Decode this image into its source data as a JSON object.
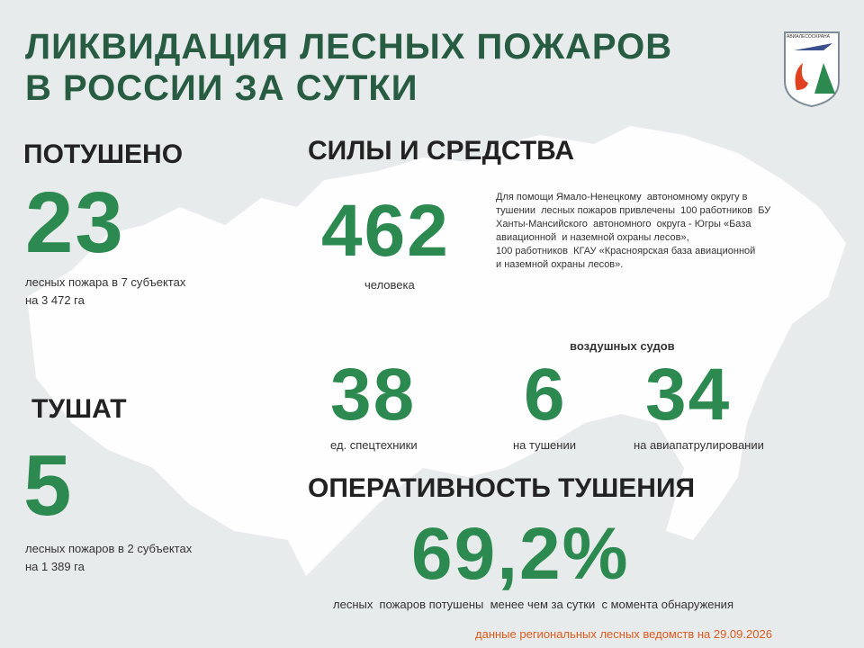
{
  "header": {
    "title": [
      "ЛИКВИДАЦИЯ ЛЕСНЫХ ПОЖАРОВ",
      "В РОССИИ ЗА СУТКИ"
    ]
  },
  "logo": "АВИАЛЕСООХРАНА",
  "extinguished": {
    "heading": "ПОТУШЕНО",
    "number": "23",
    "lines": [
      "лесных пожара в 7 субъектах",
      "на 3 472 га"
    ]
  },
  "burning": {
    "heading": "ТУШАТ",
    "number": "5",
    "lines": [
      "лесных пожаров в 2 субъектах",
      "на 1 389 га"
    ]
  },
  "forces": {
    "heading": "СИЛЫ И СРЕДСТВА",
    "people": {
      "number": "462",
      "label": "человека"
    },
    "note": [
      "Для помощи Ямало-Ненецкому  автономному округу в",
      "тушении  лесных пожаров привлечены  100 работников  БУ",
      "Ханты-Мансийского  автономного  округа - Югры «База",
      "авиационной  и наземной охраны лесов»,",
      "100 работников  КГАУ «Красноярская база авиационной",
      "и наземной охраны лесов»."
    ],
    "aircraft_label": "воздушных судов",
    "items": [
      {
        "number": "38",
        "label": "ед. спецтехники"
      },
      {
        "number": "6",
        "label": "на тушении"
      },
      {
        "number": "34",
        "label": "на авиапатрулировании"
      }
    ]
  },
  "efficiency": {
    "heading": "ОПЕРАТИВНОСТЬ ТУШЕНИЯ",
    "number": "69,2%",
    "label": "лесных  пожаров потушены  менее чем за сутки  с момента обнаружения"
  },
  "footer": "данные региональных лесных ведомств на 29.09.2026"
}
